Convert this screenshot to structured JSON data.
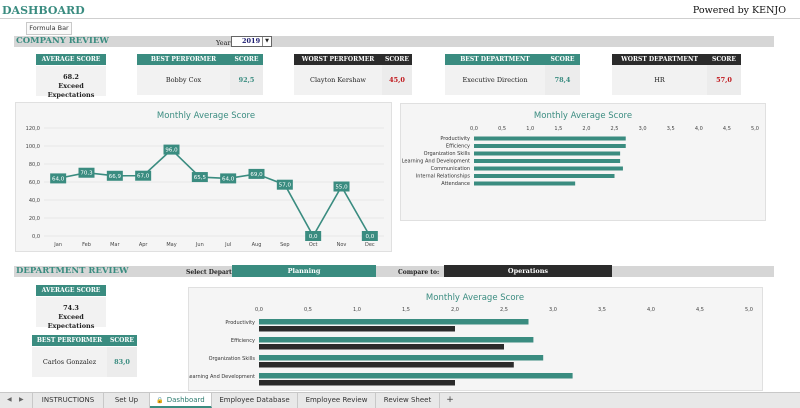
{
  "header": {
    "title": "DASHBOARD",
    "powered_by": "Powered by KENJO",
    "tooltip": "Formula Bar"
  },
  "company": {
    "section_label": "COMPANY REVIEW",
    "year_label": "Year:",
    "year_value": "2019",
    "avg_score_title": "AVERAGE SCORE",
    "avg_score_value": "68.2",
    "avg_score_text": "Exceed Expectations",
    "best_performer_title": "BEST PERFORMER",
    "best_performer_name": "Bobby Cox",
    "best_performer_score": "92,5",
    "worst_performer_title": "WORST PERFORMER",
    "worst_performer_name": "Clayton Kershaw",
    "worst_performer_score": "45,0",
    "best_dept_title": "BEST DEPARTMENT",
    "best_dept_name": "Executive Direction",
    "best_dept_score": "78,4",
    "worst_dept_title": "WORST DEPARTMENT",
    "worst_dept_name": "HR",
    "worst_dept_score": "57,0",
    "score_label": "SCORE"
  },
  "department": {
    "section_label": "DEPARTMENT REVIEW",
    "select_label": "Select Department:",
    "select_value": "Planning",
    "compare_label": "Compare to:",
    "compare_value": "Operations",
    "avg_score_title": "AVERAGE SCORE",
    "avg_score_value": "74.3",
    "avg_score_text": "Exceed Expectations",
    "best_performer_title": "BEST PERFORMER",
    "best_performer_name": "Carlos Gonzalez",
    "best_performer_score": "83,0",
    "score_label": "SCORE"
  },
  "chart_data": [
    {
      "type": "line",
      "title": "Monthly Average Score",
      "categories": [
        "Jan",
        "Feb",
        "Mar",
        "Apr",
        "May",
        "Jun",
        "Jul",
        "Aug",
        "Sep",
        "Oct",
        "Nov",
        "Dec"
      ],
      "values": [
        64.0,
        70.3,
        66.9,
        67.0,
        96.0,
        65.5,
        64.0,
        69.0,
        57.0,
        0.0,
        55.0,
        0.0
      ],
      "data_labels": [
        "64,0",
        "70,3",
        "66,9",
        "67,0",
        "96,0",
        "65,5",
        "64,0",
        "69,0",
        "57,0",
        "0,0",
        "55,0",
        "0,0"
      ],
      "yticks": [
        "0,0",
        "20,0",
        "40,0",
        "60,0",
        "80,0",
        "100,0",
        "120,0"
      ],
      "ylim": [
        0,
        120
      ],
      "color": "#3a8c80",
      "grid": true
    },
    {
      "type": "bar",
      "orientation": "horizontal",
      "title": "Monthly Average Score",
      "categories": [
        "Productivity",
        "Efficiency",
        "Organization Skills",
        "Learning And Development",
        "Communication",
        "Internal Relationships",
        "Attendance"
      ],
      "values": [
        2.7,
        2.7,
        2.6,
        2.6,
        2.65,
        2.5,
        1.8
      ],
      "xticks": [
        "0,0",
        "0,5",
        "1,0",
        "1,5",
        "2,0",
        "2,5",
        "3,0",
        "3,5",
        "4,0",
        "4,5",
        "5,0"
      ],
      "xlim": [
        0,
        5
      ],
      "color": "#3a8c80"
    },
    {
      "type": "bar",
      "orientation": "horizontal",
      "title": "Monthly Average Score",
      "categories": [
        "Productivity",
        "Efficiency",
        "Organization Skills",
        "Learning And Development"
      ],
      "series": [
        {
          "values": [
            2.75,
            2.8,
            2.9,
            3.2
          ],
          "color": "#3a8c80"
        },
        {
          "values": [
            2.0,
            2.5,
            2.6,
            2.0
          ],
          "color": "#2b2b2b"
        }
      ],
      "xticks": [
        "0,0",
        "0,5",
        "1,0",
        "1,5",
        "2,0",
        "2,5",
        "3,0",
        "3,5",
        "4,0",
        "4,5",
        "5,0"
      ],
      "xlim": [
        0,
        5
      ]
    }
  ],
  "tabs": [
    {
      "label": "INSTRUCTIONS",
      "active": false
    },
    {
      "label": "Set Up",
      "active": false
    },
    {
      "label": "Dashboard",
      "active": true
    },
    {
      "label": "Employee Database",
      "active": false
    },
    {
      "label": "Employee Review",
      "active": false
    },
    {
      "label": "Review Sheet",
      "active": false
    }
  ],
  "tab_add": "+",
  "tab_icons": {
    "lock": "lock-icon",
    "nav_prev": "◀",
    "nav_next": "▶"
  }
}
